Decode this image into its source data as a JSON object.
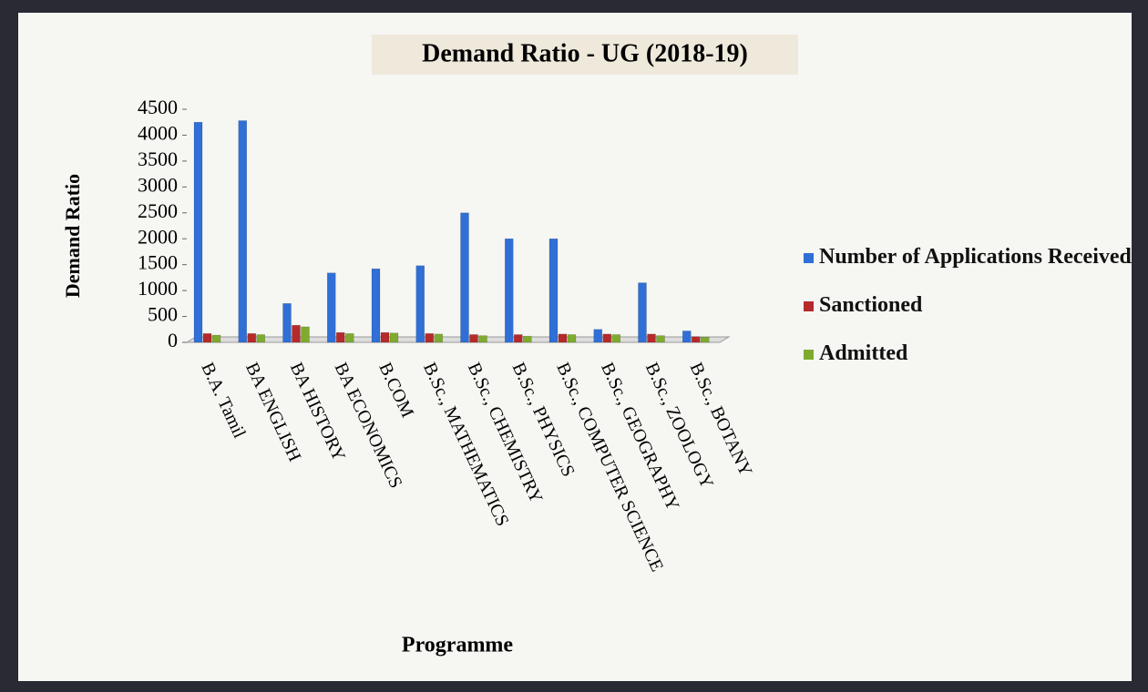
{
  "chart_data": {
    "type": "bar",
    "title": "Demand Ratio - UG (2018-19)",
    "x_label": "Programme",
    "y_label": "Demand Ratio",
    "categories": [
      "B.A. Tamil",
      "BA ENGLISH",
      "BA HISTORY",
      "BA ECONOMICS",
      "B.COM",
      "B.Sc., MATHEMATICS",
      "B.Sc., CHEMISTRY",
      "B.Sc., PHYSICS",
      "B.Sc., COMPUTER SCIENCE",
      "B.Sc., GEOGRAPHY",
      "B.Sc., ZOOLOGY",
      "B.Sc., BOTANY"
    ],
    "series": [
      {
        "name": "Number of Applications Received",
        "color": "#2f6fd6",
        "values": [
          4250,
          4280,
          750,
          1340,
          1420,
          1480,
          2500,
          2000,
          2000,
          250,
          1150,
          220
        ]
      },
      {
        "name": "Sanctioned",
        "color": "#b52a2a",
        "values": [
          170,
          170,
          330,
          190,
          190,
          170,
          150,
          150,
          160,
          160,
          160,
          110
        ]
      },
      {
        "name": "Admitted",
        "color": "#7eab2f",
        "values": [
          140,
          150,
          300,
          170,
          180,
          160,
          130,
          120,
          150,
          150,
          130,
          100
        ]
      }
    ],
    "ylim": [
      0,
      4500
    ],
    "yticks": [
      0,
      500,
      1000,
      1500,
      2000,
      2500,
      3000,
      3500,
      4000,
      4500
    ],
    "legend": "right"
  }
}
